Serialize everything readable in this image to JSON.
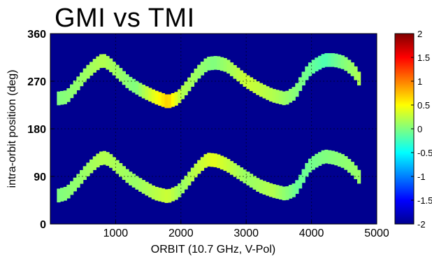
{
  "title": "GMI vs TMI",
  "chart_data": {
    "type": "heatmap",
    "title": "GMI vs TMI",
    "xlabel": "ORBIT (10.7 GHz, V-Pol)",
    "ylabel": "intra-orbit position (deg)",
    "xlim": [
      0,
      5000
    ],
    "ylim": [
      0,
      360
    ],
    "xticks": [
      "1000",
      "2000",
      "3000",
      "4000",
      "5000"
    ],
    "yticks": [
      "0",
      "90",
      "180",
      "270",
      "360"
    ],
    "grid": true,
    "background_value": -2,
    "colorbar": {
      "colormap": "jet",
      "range": [
        -2,
        2
      ],
      "ticks": [
        "2",
        "1.5",
        "1",
        "0.5",
        "0",
        "-0.5",
        "-1",
        "-1.5",
        "-2"
      ]
    },
    "band_width_deg": 26,
    "bands": [
      {
        "center": [
          [
            100,
            237
          ],
          [
            250,
            240
          ],
          [
            400,
            262
          ],
          [
            550,
            285
          ],
          [
            700,
            302
          ],
          [
            800,
            310
          ],
          [
            900,
            303
          ],
          [
            1050,
            285
          ],
          [
            1200,
            267
          ],
          [
            1400,
            252
          ],
          [
            1600,
            240
          ],
          [
            1800,
            231
          ],
          [
            1950,
            238
          ],
          [
            2100,
            260
          ],
          [
            2250,
            285
          ],
          [
            2400,
            303
          ],
          [
            2550,
            305
          ],
          [
            2700,
            300
          ],
          [
            2850,
            285
          ],
          [
            3000,
            270
          ],
          [
            3200,
            255
          ],
          [
            3400,
            243
          ],
          [
            3600,
            237
          ],
          [
            3750,
            248
          ],
          [
            3850,
            270
          ],
          [
            3950,
            290
          ],
          [
            4050,
            300
          ],
          [
            4200,
            310
          ],
          [
            4350,
            310
          ],
          [
            4500,
            305
          ],
          [
            4650,
            290
          ],
          [
            4750,
            270
          ]
        ],
        "values": [
          [
            100,
            0.0
          ],
          [
            500,
            0.1
          ],
          [
            800,
            0.2
          ],
          [
            1300,
            0.0
          ],
          [
            1800,
            0.7
          ],
          [
            2000,
            0.2
          ],
          [
            2500,
            0.0
          ],
          [
            3000,
            0.3
          ],
          [
            3400,
            0.2
          ],
          [
            3800,
            0.0
          ],
          [
            4200,
            -0.2
          ],
          [
            4750,
            0.2
          ]
        ]
      },
      {
        "center": [
          [
            100,
            53
          ],
          [
            250,
            58
          ],
          [
            400,
            78
          ],
          [
            550,
            100
          ],
          [
            700,
            118
          ],
          [
            800,
            126
          ],
          [
            900,
            122
          ],
          [
            1050,
            105
          ],
          [
            1200,
            88
          ],
          [
            1400,
            72
          ],
          [
            1600,
            58
          ],
          [
            1800,
            52
          ],
          [
            1950,
            60
          ],
          [
            2100,
            82
          ],
          [
            2250,
            105
          ],
          [
            2400,
            122
          ],
          [
            2550,
            120
          ],
          [
            2700,
            112
          ],
          [
            2850,
            100
          ],
          [
            3000,
            88
          ],
          [
            3200,
            72
          ],
          [
            3400,
            63
          ],
          [
            3600,
            57
          ],
          [
            3750,
            65
          ],
          [
            3850,
            85
          ],
          [
            3950,
            108
          ],
          [
            4050,
            118
          ],
          [
            4200,
            128
          ],
          [
            4350,
            125
          ],
          [
            4500,
            118
          ],
          [
            4650,
            102
          ],
          [
            4750,
            85
          ]
        ],
        "values": [
          [
            100,
            0.0
          ],
          [
            500,
            0.1
          ],
          [
            800,
            0.2
          ],
          [
            1300,
            0.1
          ],
          [
            1800,
            0.3
          ],
          [
            2000,
            0.1
          ],
          [
            2500,
            0.4
          ],
          [
            3000,
            0.1
          ],
          [
            3400,
            0.2
          ],
          [
            3800,
            -0.1
          ],
          [
            4200,
            0.0
          ],
          [
            4750,
            0.1
          ]
        ]
      }
    ]
  }
}
